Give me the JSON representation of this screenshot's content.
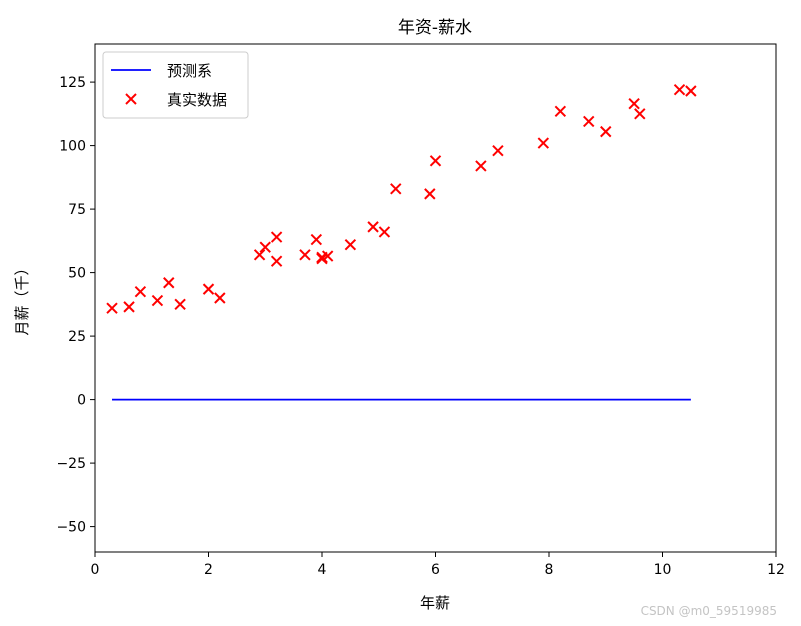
{
  "chart_data": {
    "type": "line",
    "title": "年资-薪水",
    "xlabel": "年薪",
    "ylabel": "月薪（千）",
    "xlim": [
      0,
      12
    ],
    "ylim": [
      -60,
      140
    ],
    "xticks": [
      0,
      2,
      4,
      6,
      8,
      10,
      12
    ],
    "yticks": [
      -50,
      -25,
      0,
      25,
      50,
      75,
      100,
      125
    ],
    "grid": false,
    "legend_position": "upper-left",
    "series": [
      {
        "name": "预测系",
        "kind": "line",
        "color": "#0000ff",
        "x": [
          0.3,
          10.5
        ],
        "y": [
          0,
          0
        ]
      },
      {
        "name": "真实数据",
        "kind": "scatter",
        "marker": "x",
        "color": "#ff0000",
        "x": [
          0.3,
          0.6,
          0.8,
          1.1,
          1.3,
          1.5,
          2.0,
          2.2,
          2.9,
          3.0,
          3.2,
          3.2,
          3.7,
          3.9,
          4.0,
          4.0,
          4.1,
          4.5,
          4.9,
          5.1,
          5.3,
          5.9,
          6.0,
          6.8,
          7.1,
          7.9,
          8.2,
          8.7,
          9.0,
          9.5,
          9.6,
          10.3,
          10.5
        ],
        "y": [
          36,
          36.5,
          42.5,
          39,
          46,
          37.5,
          43.5,
          40,
          57,
          60,
          54.5,
          64,
          57,
          63,
          56,
          55.5,
          56.5,
          61,
          68,
          66,
          83,
          81,
          94,
          92,
          98,
          101,
          113.5,
          109.5,
          105.5,
          116.5,
          112.5,
          122,
          121.5
        ]
      }
    ]
  },
  "watermark": "CSDN @m0_59519985"
}
